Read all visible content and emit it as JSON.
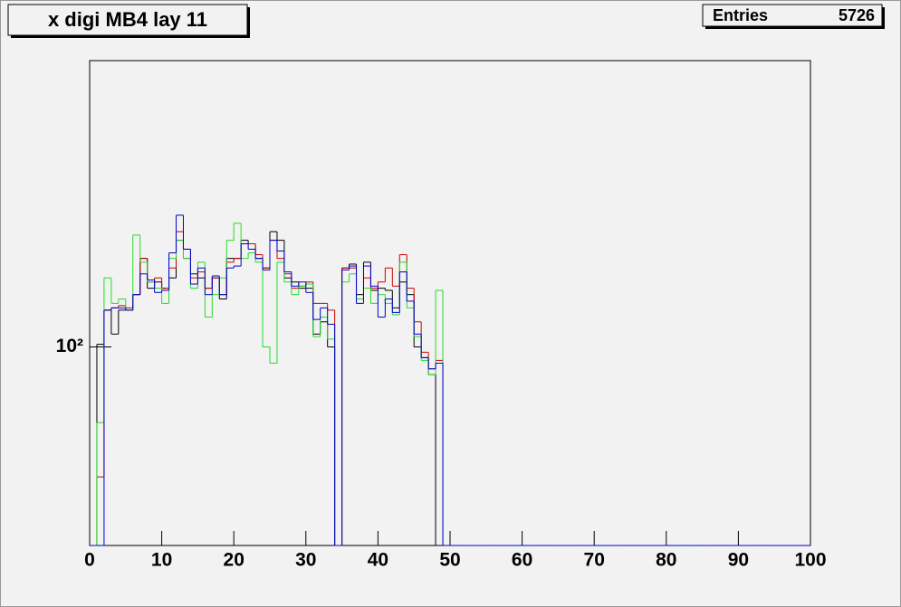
{
  "chart_data": {
    "type": "histogram",
    "title": "x digi MB4 lay 11",
    "stats_label": "Entries",
    "stats_value": 5726,
    "bins": [
      0,
      1,
      2,
      3,
      4,
      5,
      6,
      7,
      8,
      9,
      10,
      11,
      12,
      13,
      14,
      15,
      16,
      17,
      18,
      19,
      20,
      21,
      22,
      23,
      24,
      25,
      26,
      27,
      28,
      29,
      30,
      31,
      32,
      33,
      34,
      35,
      36,
      37,
      38,
      39,
      40,
      41,
      42,
      43,
      44,
      45,
      46,
      47,
      48,
      49,
      50,
      51,
      52,
      53,
      54,
      55,
      56,
      57,
      58,
      59,
      60,
      61,
      62,
      63,
      64,
      65,
      66,
      67,
      68,
      69,
      70,
      71,
      72,
      73,
      74,
      75,
      76,
      77,
      78,
      79,
      80,
      81,
      82,
      83,
      84,
      85,
      86,
      87,
      88,
      89,
      90,
      91,
      92,
      93,
      94,
      95,
      96,
      97,
      98,
      99,
      100
    ],
    "series": [
      {
        "color": "#000000",
        "values": [
          0,
          101,
          115,
          105,
          115,
          115,
          122,
          140,
          125,
          128,
          125,
          130,
          150,
          145,
          132,
          130,
          125,
          130,
          120,
          140,
          140,
          150,
          148,
          140,
          135,
          155,
          150,
          130,
          128,
          125,
          125,
          105,
          110,
          100,
          0,
          135,
          137,
          122,
          138,
          124,
          125,
          124,
          116,
          128,
          122,
          100,
          96,
          90,
          0,
          0,
          0,
          0,
          0,
          0,
          0,
          0,
          0,
          0,
          0,
          0,
          0,
          0,
          0,
          0,
          0,
          0,
          0,
          0,
          0,
          0,
          0,
          0,
          0,
          0,
          0,
          0,
          0,
          0,
          0,
          0,
          0,
          0,
          0,
          0,
          0,
          0,
          0,
          0,
          0,
          0,
          0,
          0,
          0,
          0,
          0,
          0,
          0,
          0,
          0,
          0
        ]
      },
      {
        "color": "#cc0000",
        "values": [
          0,
          61,
          115,
          116,
          117,
          116,
          122,
          140,
          128,
          130,
          125,
          135,
          155,
          140,
          130,
          133,
          125,
          130,
          122,
          138,
          140,
          148,
          148,
          142,
          135,
          150,
          140,
          132,
          125,
          126,
          128,
          118,
          118,
          115,
          0,
          135,
          135,
          120,
          130,
          125,
          128,
          135,
          126,
          142,
          125,
          110,
          98,
          92,
          95,
          0,
          0,
          0,
          0,
          0,
          0,
          0,
          0,
          0,
          0,
          0,
          0,
          0,
          0,
          0,
          0,
          0,
          0,
          0,
          0,
          0,
          0,
          0,
          0,
          0,
          0,
          0,
          0,
          0,
          0,
          0,
          0,
          0,
          0,
          0,
          0,
          0,
          0,
          0,
          0,
          0,
          0,
          0,
          0,
          0,
          0,
          0,
          0,
          0,
          0,
          0
        ]
      },
      {
        "color": "#22dd22",
        "values": [
          0,
          75,
          130,
          118,
          120,
          115,
          153,
          138,
          128,
          125,
          118,
          140,
          150,
          140,
          125,
          138,
          112,
          122,
          130,
          150,
          160,
          140,
          143,
          138,
          100,
          94,
          138,
          128,
          122,
          126,
          127,
          104,
          112,
          103,
          0,
          128,
          132,
          120,
          125,
          118,
          122,
          118,
          113,
          138,
          116,
          104,
          95,
          90,
          124,
          0,
          0,
          0,
          0,
          0,
          0,
          0,
          0,
          0,
          0,
          0,
          0,
          0,
          0,
          0,
          0,
          0,
          0,
          0,
          0,
          0,
          0,
          0,
          0,
          0,
          0,
          0,
          0,
          0,
          0,
          0,
          0,
          0,
          0,
          0,
          0,
          0,
          0,
          0,
          0,
          0,
          0,
          0,
          0,
          0,
          0,
          0,
          0,
          0,
          0,
          0
        ]
      },
      {
        "color": "#0000cc",
        "values": [
          0,
          0,
          115,
          116,
          116,
          115,
          122,
          132,
          129,
          123,
          124,
          143,
          165,
          145,
          127,
          135,
          122,
          131,
          122,
          135,
          136,
          148,
          145,
          140,
          134,
          150,
          144,
          133,
          126,
          128,
          123,
          111,
          116,
          109,
          0,
          134,
          136,
          118,
          136,
          126,
          112,
          120,
          114,
          133,
          119,
          105,
          96,
          92,
          94,
          0,
          0,
          0,
          0,
          0,
          0,
          0,
          0,
          0,
          0,
          0,
          0,
          0,
          0,
          0,
          0,
          0,
          0,
          0,
          0,
          0,
          0,
          0,
          0,
          0,
          0,
          0,
          0,
          0,
          0,
          0,
          0,
          0,
          0,
          0,
          0,
          0,
          0,
          0,
          0,
          0,
          0,
          0,
          0,
          0,
          0,
          0,
          0,
          0,
          0,
          0
        ]
      }
    ],
    "xlim": [
      0,
      100
    ],
    "xticks": [
      0,
      10,
      20,
      30,
      40,
      50,
      60,
      70,
      80,
      90,
      100
    ],
    "ylim": [
      47,
      297
    ],
    "log_y": true,
    "yticks": [
      {
        "value": 100,
        "label": "10²"
      }
    ]
  }
}
